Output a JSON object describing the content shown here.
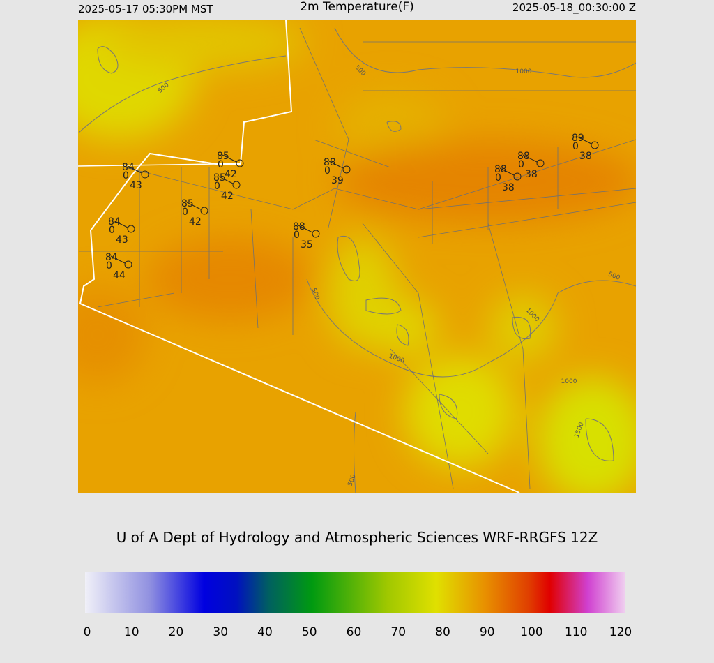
{
  "header": {
    "left": "2025-05-17 05:30PM MST",
    "title": "2m Temperature(F)",
    "right": "2025-05-18_00:30:00 Z"
  },
  "stations": [
    {
      "temperature": 84,
      "wind": 0,
      "dewpoint": 43
    },
    {
      "temperature": 85,
      "wind": 0,
      "dewpoint": 42
    },
    {
      "temperature": 85,
      "wind": 0,
      "dewpoint": 42
    },
    {
      "temperature": 85,
      "wind": 0,
      "dewpoint": 42
    },
    {
      "temperature": 84,
      "wind": 0,
      "dewpoint": 43
    },
    {
      "temperature": 84,
      "wind": 0,
      "dewpoint": 44
    },
    {
      "temperature": 88,
      "wind": 0,
      "dewpoint": 35
    },
    {
      "temperature": 88,
      "wind": 0,
      "dewpoint": 39
    },
    {
      "temperature": 88,
      "wind": 0,
      "dewpoint": 38
    },
    {
      "temperature": 88,
      "wind": 0,
      "dewpoint": 38
    },
    {
      "temperature": 89,
      "wind": 0,
      "dewpoint": 38
    }
  ],
  "contour_labels": [
    500,
    500,
    1000,
    500,
    500,
    1000,
    1000,
    1000,
    1500,
    500
  ],
  "credit": "U of A Dept of Hydrology and Atmospheric Sciences WRF-RRGFS 12Z",
  "colorbar": {
    "ticks": [
      0,
      10,
      20,
      30,
      40,
      50,
      60,
      70,
      80,
      90,
      100,
      110,
      120
    ]
  }
}
